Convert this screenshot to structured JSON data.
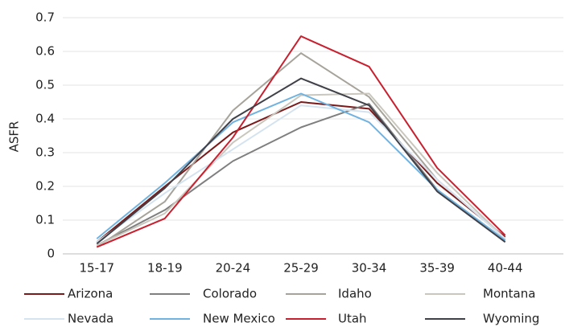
{
  "chart_data": {
    "type": "line",
    "y_label": "ASFR",
    "categories": [
      "15-17",
      "18-19",
      "20-24",
      "25-29",
      "30-34",
      "35-39",
      "40-44"
    ],
    "series": [
      {
        "name": "Arizona",
        "color": "#7b1a1a",
        "values": [
          0.035,
          0.2,
          0.36,
          0.45,
          0.43,
          0.21,
          0.05
        ]
      },
      {
        "name": "Colorado",
        "color": "#7f7f7f",
        "values": [
          0.025,
          0.13,
          0.275,
          0.375,
          0.445,
          0.19,
          0.04
        ]
      },
      {
        "name": "Idaho",
        "color": "#a6a39a",
        "values": [
          0.02,
          0.155,
          0.425,
          0.595,
          0.465,
          0.22,
          0.045
        ]
      },
      {
        "name": "Montana",
        "color": "#c9c7bd",
        "values": [
          0.025,
          0.12,
          0.33,
          0.47,
          0.475,
          0.24,
          0.045
        ]
      },
      {
        "name": "Nevada",
        "color": "#d4e3ef",
        "values": [
          0.035,
          0.18,
          0.31,
          0.44,
          0.42,
          0.22,
          0.045
        ]
      },
      {
        "name": "New Mexico",
        "color": "#71b3e0",
        "values": [
          0.045,
          0.21,
          0.39,
          0.475,
          0.39,
          0.19,
          0.04
        ]
      },
      {
        "name": "Utah",
        "color": "#c8202f",
        "values": [
          0.02,
          0.105,
          0.345,
          0.645,
          0.555,
          0.255,
          0.055
        ]
      },
      {
        "name": "Wyoming",
        "color": "#404049",
        "values": [
          0.03,
          0.195,
          0.4,
          0.52,
          0.44,
          0.185,
          0.035
        ]
      }
    ],
    "ylim": [
      0,
      0.7
    ],
    "yticks": [
      0,
      0.1,
      0.2,
      0.3,
      0.4,
      0.5,
      0.6,
      0.7
    ],
    "grid": true
  }
}
